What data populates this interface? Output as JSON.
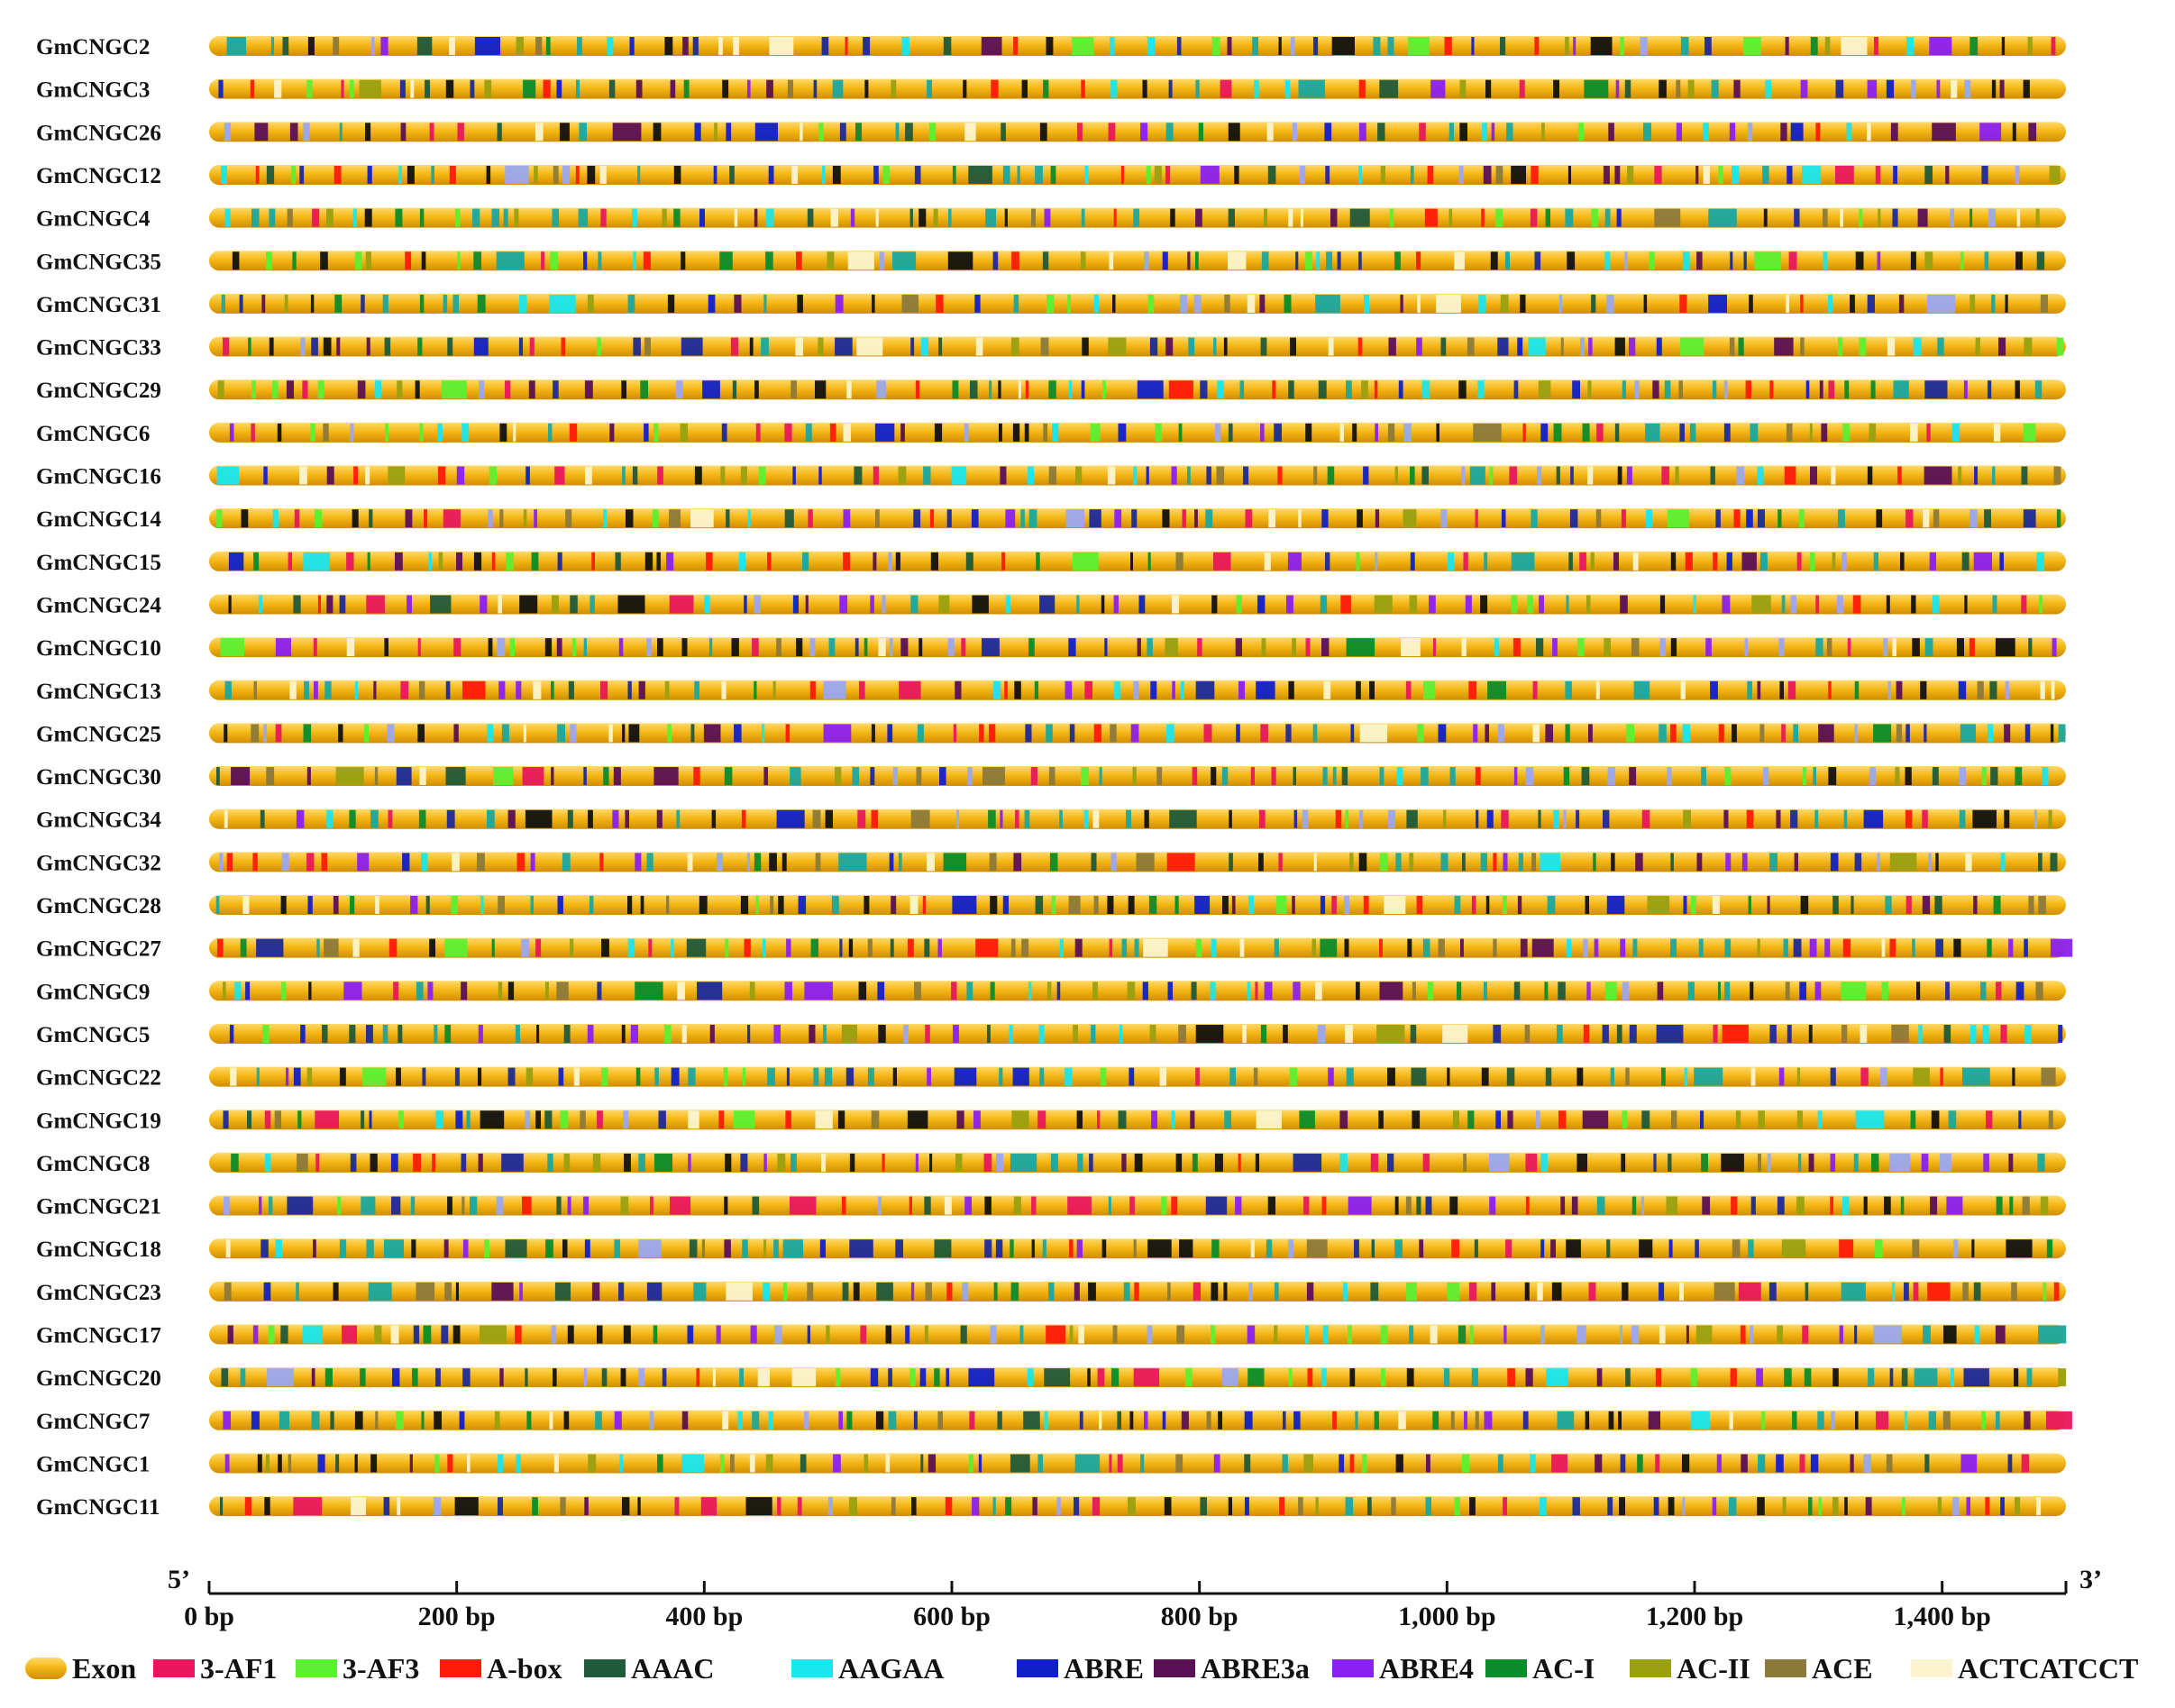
{
  "genes": [
    "GmCNGC2",
    "GmCNGC3",
    "GmCNGC26",
    "GmCNGC12",
    "GmCNGC4",
    "GmCNGC35",
    "GmCNGC31",
    "GmCNGC33",
    "GmCNGC29",
    "GmCNGC6",
    "GmCNGC16",
    "GmCNGC14",
    "GmCNGC15",
    "GmCNGC24",
    "GmCNGC10",
    "GmCNGC13",
    "GmCNGC25",
    "GmCNGC30",
    "GmCNGC34",
    "GmCNGC32",
    "GmCNGC28",
    "GmCNGC27",
    "GmCNGC9",
    "GmCNGC5",
    "GmCNGC22",
    "GmCNGC19",
    "GmCNGC8",
    "GmCNGC21",
    "GmCNGC18",
    "GmCNGC23",
    "GmCNGC17",
    "GmCNGC20",
    "GmCNGC7",
    "GmCNGC1",
    "GmCNGC11"
  ],
  "axis": {
    "start_label": "5’",
    "end_label": "3’",
    "min_bp": 0,
    "max_bp": 1500,
    "ticks": [
      {
        "value": 0,
        "label": "0 bp"
      },
      {
        "value": 200,
        "label": "200 bp"
      },
      {
        "value": 400,
        "label": "400 bp"
      },
      {
        "value": 600,
        "label": "600 bp"
      },
      {
        "value": 800,
        "label": "800 bp"
      },
      {
        "value": 1000,
        "label": "1,000 bp"
      },
      {
        "value": 1200,
        "label": "1,200 bp"
      },
      {
        "value": 1400,
        "label": "1,400 bp"
      }
    ]
  },
  "exon": {
    "label": "Exon",
    "color": "#f2b418"
  },
  "elements": [
    {
      "label": "3-AF1",
      "color": "#e8175d"
    },
    {
      "label": "3-AF3",
      "color": "#5cf032"
    },
    {
      "label": "A-box",
      "color": "#ff1a0a"
    },
    {
      "label": "AAAC",
      "color": "#1f5a3a"
    },
    {
      "label": "AAGAA",
      "color": "#19e6ee"
    },
    {
      "label": "ABRE",
      "color": "#1020c8"
    },
    {
      "label": "ABRE3a",
      "color": "#5a1055"
    },
    {
      "label": "ABRE4",
      "color": "#8a20f0"
    },
    {
      "label": "AC-I",
      "color": "#0a8c2a"
    },
    {
      "label": "AC-II",
      "color": "#9aa010"
    },
    {
      "label": "ACE",
      "color": "#8c7a3a"
    },
    {
      "label": "ACTCATCCT",
      "color": "#fbf4cf"
    }
  ],
  "extra_colors": {
    "black": "#111111",
    "teal": "#1aa8a0",
    "lavender": "#9aa8f0",
    "navy": "#1c2a9a"
  }
}
